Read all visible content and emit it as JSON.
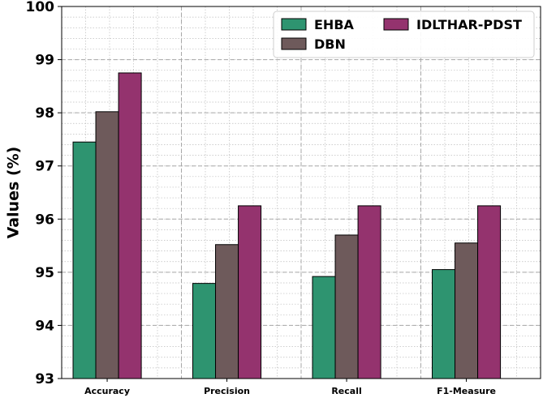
{
  "chart_data": {
    "type": "bar",
    "title": "",
    "xlabel": "",
    "ylabel": "Values (%)",
    "categories": [
      "Accuracy",
      "Precision",
      "Recall",
      "F1-Measure"
    ],
    "series": [
      {
        "name": "EHBA",
        "color": "#2e9470",
        "values": [
          97.45,
          94.79,
          94.92,
          95.05
        ]
      },
      {
        "name": "DBN",
        "color": "#6e5a5b",
        "values": [
          98.02,
          95.52,
          95.7,
          95.55
        ]
      },
      {
        "name": "IDLTHAR-PDST",
        "color": "#94336e",
        "values": [
          98.75,
          96.25,
          96.25,
          96.25
        ]
      }
    ],
    "ylim": [
      93,
      100
    ],
    "yticks": [
      93,
      94,
      95,
      96,
      97,
      98,
      99,
      100
    ],
    "grid": true,
    "legend_position": "top-right"
  }
}
